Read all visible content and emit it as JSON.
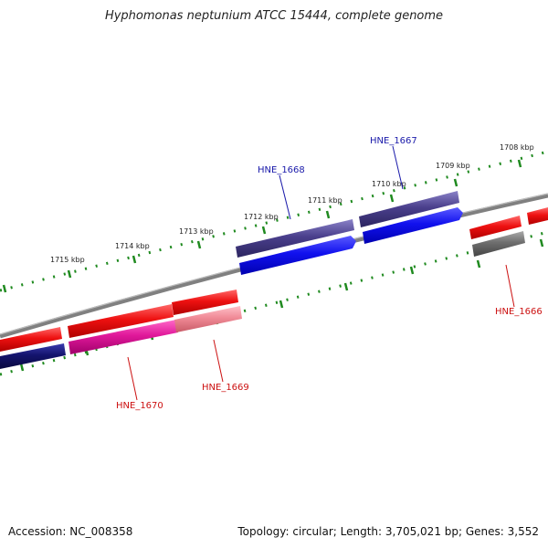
{
  "title": "Hyphomonas neptunium ATCC 15444, complete genome",
  "footer": {
    "accession": "Accession: NC_008358",
    "summary": "Topology: circular; Length: 3,705,021 bp; Genes: 3,552"
  },
  "scale_labels": [
    "1715 kbp",
    "1714 kbp",
    "1713 kbp",
    "1712 kbp",
    "1711 kbp",
    "1710 kbp",
    "1709 kbp",
    "1708 kbp"
  ],
  "gene_labels": {
    "hne_1668": "HNE_1668",
    "hne_1667": "HNE_1667",
    "hne_1666": "HNE_1666",
    "hne_1670": "HNE_1670",
    "hne_1669": "HNE_1669"
  },
  "colors": {
    "axis": "#808080",
    "ticks": "#1f8a1f",
    "gene_red": "#ee1111",
    "gene_blue": "#1111ee",
    "gene_purple": "#4a3f8c",
    "gene_navy": "#14146e",
    "gene_magenta": "#e0189a",
    "gene_pink": "#f08a96",
    "gene_gray": "#6e6e6e",
    "label_blue": "#1a1aaa",
    "label_red": "#cc1111"
  }
}
